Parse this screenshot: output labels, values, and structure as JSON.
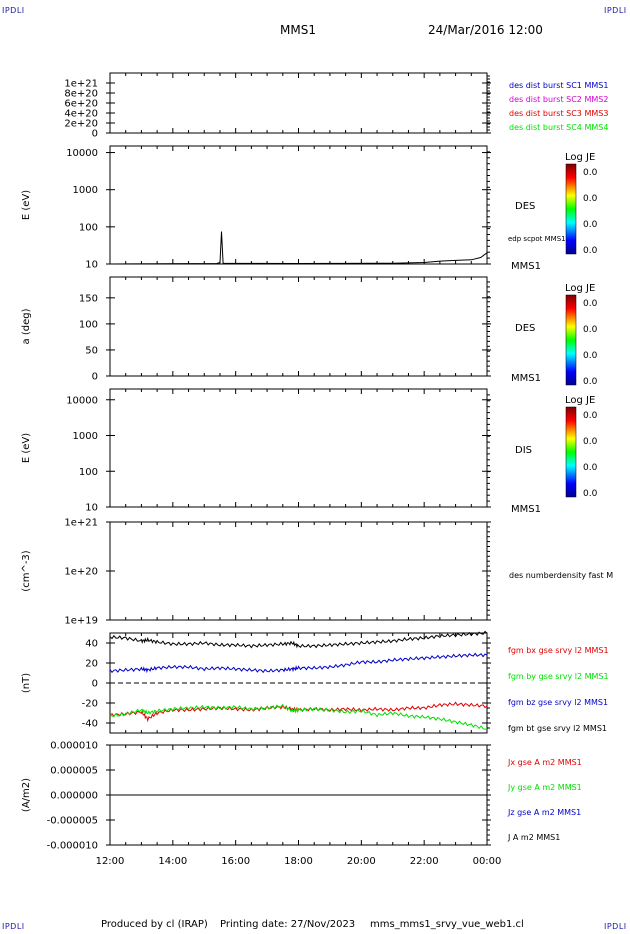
{
  "corner_label": "IPDLI",
  "header": {
    "title": "MMS1",
    "datetime": "24/Mar/2016 12:00"
  },
  "footer": {
    "produced_by": "Produced by cl (IRAP)",
    "printing_date": "Printing date: 27/Nov/2023",
    "file": "mms_mms1_srvy_vue_web1.cl"
  },
  "colorbars": [
    {
      "title": "Log JE",
      "ticks": [
        "0.0",
        "0.0",
        "0.0",
        "0.0"
      ]
    },
    {
      "title": "Log JE",
      "ticks": [
        "0.0",
        "0.0",
        "0.0",
        "0.0"
      ]
    },
    {
      "title": "Log JE",
      "ticks": [
        "0.0",
        "0.0",
        "0.0",
        "0.0"
      ]
    }
  ],
  "colors": {
    "black": "#000000",
    "blue": "#0000c8",
    "magenta": "#d400d4",
    "red": "#e00000",
    "green": "#00e000"
  },
  "chart_data": [
    {
      "type": "line",
      "title": "",
      "ylabel": "",
      "ylim": [
        0,
        1.2e+21
      ],
      "yticks": [
        "0",
        "2e+20",
        "4e+20",
        "6e+20",
        "8e+20",
        "1e+21"
      ],
      "zero_line": true,
      "series": [
        {
          "name": "des dist burst SC1 MMS1",
          "color": "#0000c8",
          "values": []
        },
        {
          "name": "des dist burst SC2 MMS2",
          "color": "#d400d4",
          "values": []
        },
        {
          "name": "des dist burst SC3 MMS3",
          "color": "#e00000",
          "values": []
        },
        {
          "name": "des dist burst SC4 MMS4",
          "color": "#00e000",
          "values": []
        }
      ]
    },
    {
      "type": "heatmap",
      "ylabel": "E (eV)",
      "log_scale": true,
      "ylim": [
        10,
        15000
      ],
      "yticks": [
        "10",
        "100",
        "1000",
        "10000"
      ],
      "label": "DES",
      "series_label": "edp scpot MMS1",
      "spacecraft": "MMS1",
      "line": {
        "name": "edp scpot MMS1",
        "x": [
          0,
          3.4,
          3.5,
          3.55,
          3.6,
          6,
          9,
          10.0,
          10.5,
          11,
          11.5,
          11.8,
          12
        ],
        "y": [
          10,
          10.3,
          11,
          75,
          10.5,
          10.3,
          10.5,
          11,
          12,
          12.5,
          13,
          15,
          20
        ]
      }
    },
    {
      "type": "heatmap",
      "ylabel": "a (deg)",
      "ylim": [
        0,
        190
      ],
      "yticks": [
        "0",
        "50",
        "100",
        "150"
      ],
      "label": "DES",
      "spacecraft": "MMS1"
    },
    {
      "type": "heatmap",
      "ylabel": "E (eV)",
      "log_scale": true,
      "ylim": [
        10,
        20000
      ],
      "yticks": [
        "10",
        "100",
        "1000",
        "10000"
      ],
      "label": "DIS",
      "spacecraft": "MMS1"
    },
    {
      "type": "line",
      "ylabel": "(cm^-3)",
      "log_scale": true,
      "ylim": [
        1e+19,
        1e+21
      ],
      "yticks": [
        "1e+19",
        "1e+20",
        "1e+21"
      ],
      "series": [
        {
          "name": "des numberdensity fast M",
          "color": "#000000",
          "values": []
        }
      ]
    },
    {
      "type": "line",
      "ylabel": "(nT)",
      "ylim": [
        -50,
        50
      ],
      "yticks": [
        "-40",
        "-20",
        "0",
        "20",
        "40"
      ],
      "zero_line": true,
      "x": [
        0,
        0.5,
        1,
        1.2,
        1.5,
        2,
        2.5,
        3,
        3.5,
        4,
        4.5,
        5,
        5.5,
        5.8,
        6,
        6.5,
        7,
        7.5,
        8,
        8.5,
        9,
        9.5,
        10,
        10.5,
        11,
        11.5,
        12
      ],
      "series": [
        {
          "name": "fgm bx gse srvy l2 MMS1",
          "color": "#e00000",
          "values": [
            -32,
            -31,
            -29,
            -36,
            -30,
            -27,
            -27,
            -26,
            -25,
            -26,
            -27,
            -25,
            -24,
            -26,
            -27,
            -26,
            -27,
            -26,
            -27,
            -26,
            -27,
            -25,
            -25,
            -22,
            -21,
            -22,
            -23
          ]
        },
        {
          "name": "fgm by gse srvy l2 MMS1",
          "color": "#00e000",
          "values": [
            -33,
            -31,
            -27,
            -30,
            -28,
            -26,
            -25,
            -24,
            -25,
            -24,
            -26,
            -25,
            -23,
            -28,
            -27,
            -26,
            -27,
            -29,
            -28,
            -32,
            -30,
            -33,
            -34,
            -36,
            -39,
            -42,
            -46
          ]
        },
        {
          "name": "fgm bz gse srvy l2 MMS1",
          "color": "#0000c8",
          "values": [
            12,
            13,
            14,
            13,
            15,
            16,
            16,
            14,
            15,
            14,
            13,
            12,
            13,
            14,
            15,
            15,
            16,
            18,
            21,
            21,
            23,
            24,
            25,
            26,
            27,
            28,
            28
          ]
        },
        {
          "name": "fgm bt gse srvy l2 MMS1",
          "color": "#000000",
          "values": [
            46,
            45,
            42,
            43,
            41,
            39,
            39,
            40,
            38,
            38,
            37,
            38,
            39,
            40,
            37,
            37,
            38,
            39,
            40,
            41,
            42,
            44,
            45,
            47,
            48,
            49,
            50
          ]
        }
      ]
    },
    {
      "type": "line",
      "ylabel": "(A/m2)",
      "ylim": [
        -1e-05,
        1e-05
      ],
      "yticks": [
        "-0.000010",
        "-0.000005",
        "0.000000",
        "0.000005",
        "0.000010"
      ],
      "series": [
        {
          "name": "Jx gse A m2 MMS1",
          "color": "#e00000",
          "values": [
            0,
            0
          ]
        },
        {
          "name": "Jy gse A m2 MMS1",
          "color": "#00e000",
          "values": [
            0,
            0
          ]
        },
        {
          "name": "Jz gse A m2 MMS1",
          "color": "#0000c8",
          "values": [
            0,
            0
          ]
        },
        {
          "name": "J A m2 MMS1",
          "color": "#000000",
          "values": [
            0,
            0
          ]
        }
      ]
    }
  ],
  "x_axis": {
    "ticks": [
      "12:00",
      "14:00",
      "16:00",
      "18:00",
      "20:00",
      "22:00",
      "00:00"
    ],
    "range_hours": [
      0,
      12
    ]
  }
}
